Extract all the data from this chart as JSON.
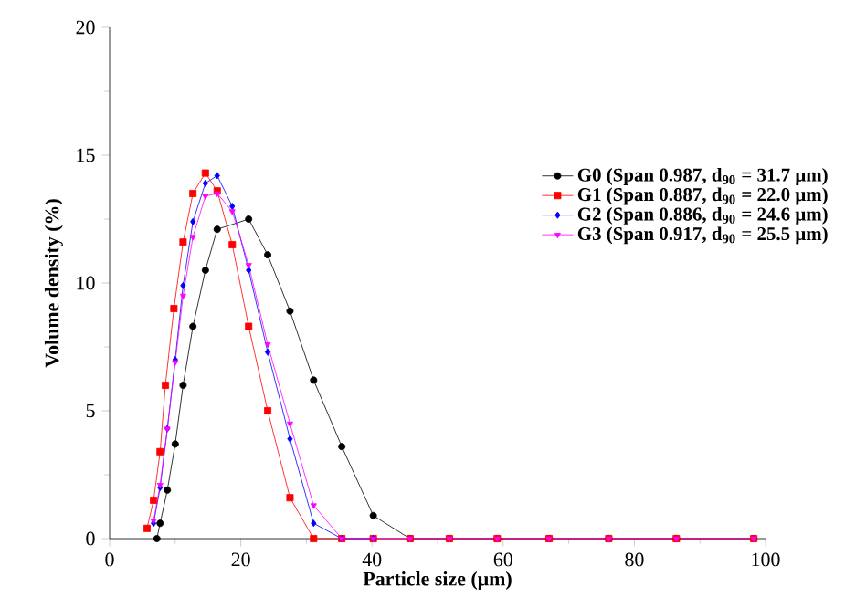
{
  "chart_data": {
    "type": "line",
    "xlabel": "Particle size (μm)",
    "ylabel": "Volume density (%)",
    "xlim": [
      0,
      100
    ],
    "ylim": [
      0,
      20
    ],
    "xticks": [
      0,
      20,
      40,
      60,
      80,
      100
    ],
    "yticks": [
      0,
      5,
      10,
      15,
      20
    ],
    "grid": false,
    "legend": "right",
    "series": [
      {
        "name": "G0 (Span 0.987, d$_{90}$ = 31.7 μm)",
        "color": "#000000",
        "marker": "circle",
        "x": [
          7.2,
          7.7,
          8.8,
          10.0,
          11.2,
          12.7,
          14.6,
          16.4,
          21.2,
          24.1,
          27.5,
          31.1,
          35.4,
          40.2,
          45.8,
          51.8,
          59.1,
          67.0,
          76.1,
          86.4,
          98.2
        ],
        "values": [
          0,
          0.6,
          1.9,
          3.7,
          6.0,
          8.3,
          10.5,
          12.1,
          12.5,
          11.1,
          8.9,
          6.2,
          3.6,
          0.9,
          0,
          0,
          0,
          0,
          0,
          0,
          0
        ]
      },
      {
        "name": "G1 (Span 0.887, d$_{90}$ = 22.0 μm)",
        "color": "#ff0000",
        "marker": "square",
        "x": [
          5.7,
          6.7,
          7.7,
          8.5,
          9.8,
          11.2,
          12.7,
          14.6,
          16.4,
          18.7,
          21.2,
          24.1,
          27.5,
          31.1,
          35.4,
          40.2,
          45.8,
          51.8,
          59.1,
          67.0,
          76.1,
          86.4,
          98.2
        ],
        "values": [
          0.4,
          1.5,
          3.4,
          6.0,
          9.0,
          11.6,
          13.5,
          14.3,
          13.6,
          11.5,
          8.3,
          5.0,
          1.6,
          0,
          0,
          0,
          0,
          0,
          0,
          0,
          0,
          0,
          0
        ]
      },
      {
        "name": "G2 (Span 0.886, d$_{90}$ = 24.6 μm)",
        "color": "#0000ff",
        "marker": "diamond",
        "x": [
          6.7,
          7.7,
          8.8,
          10.0,
          11.2,
          12.7,
          14.6,
          16.4,
          18.7,
          21.2,
          24.1,
          27.5,
          31.1,
          35.4,
          40.2
        ],
        "values": [
          0.6,
          2.0,
          4.3,
          7.0,
          9.9,
          12.4,
          13.9,
          14.2,
          13.0,
          10.5,
          7.3,
          3.9,
          0.6,
          0,
          0
        ]
      },
      {
        "name": "G3 (Span 0.917, d$_{90}$ = 25.5 μm)",
        "color": "#ff00ff",
        "marker": "triangle",
        "x": [
          6.7,
          7.7,
          8.8,
          10.0,
          11.2,
          12.7,
          14.6,
          16.4,
          18.7,
          21.2,
          24.1,
          27.5,
          31.1,
          35.4,
          40.2,
          45.8,
          51.8,
          59.1,
          67.0,
          76.1,
          86.4,
          98.2
        ],
        "values": [
          0.7,
          2.1,
          4.3,
          6.9,
          9.5,
          11.8,
          13.4,
          13.5,
          12.8,
          10.7,
          7.6,
          4.5,
          1.3,
          0,
          0,
          0,
          0,
          0,
          0,
          0,
          0,
          0
        ]
      }
    ]
  }
}
